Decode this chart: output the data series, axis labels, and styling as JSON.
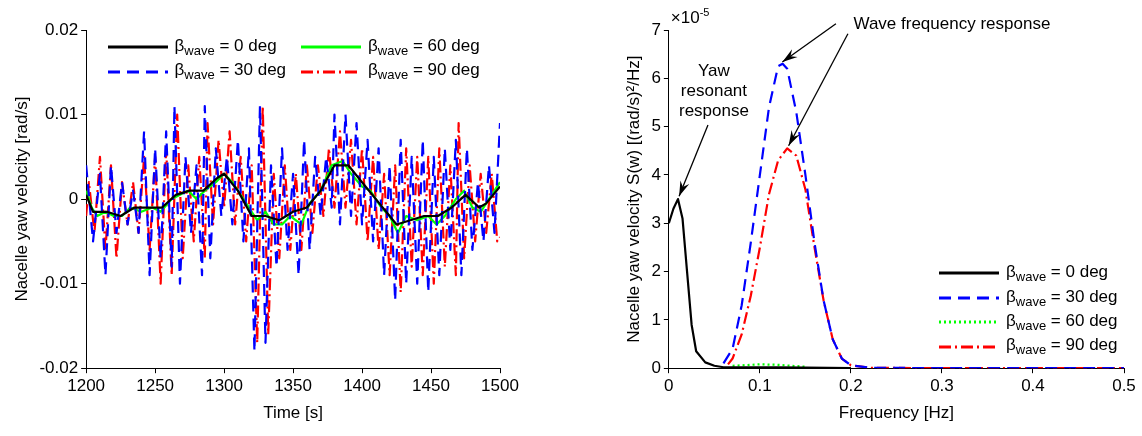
{
  "chart_data": [
    {
      "type": "line",
      "xlabel": "Time [s]",
      "ylabel": "Nacelle yaw velocity [rad/s]",
      "xlim": [
        1200,
        1500
      ],
      "ylim": [
        -0.02,
        0.02
      ],
      "xticks": [
        1200,
        1250,
        1300,
        1350,
        1400,
        1450,
        1500
      ],
      "yticks": [
        -0.02,
        -0.01,
        0,
        0.01,
        0.02
      ],
      "grid": false,
      "legend": "top",
      "series": [
        {
          "name": "β$_{wave}$ = 0 deg",
          "color": "#000000",
          "line_style": "solid",
          "x": [
            1200,
            1205,
            1215,
            1225,
            1235,
            1245,
            1255,
            1265,
            1275,
            1285,
            1295,
            1300,
            1310,
            1320,
            1330,
            1340,
            1350,
            1360,
            1370,
            1380,
            1390,
            1400,
            1410,
            1420,
            1425,
            1435,
            1445,
            1455,
            1465,
            1475,
            1485,
            1490,
            1500
          ],
          "values": [
            0.0005,
            -0.0015,
            -0.0015,
            -0.002,
            -0.001,
            -0.001,
            -0.001,
            0.0005,
            0.001,
            0.001,
            0.0025,
            0.003,
            0.001,
            -0.002,
            -0.002,
            -0.0025,
            -0.0015,
            -0.001,
            0.001,
            0.004,
            0.004,
            0.002,
            0,
            -0.002,
            -0.003,
            -0.0025,
            -0.002,
            -0.002,
            -0.001,
            0.0005,
            -0.001,
            -0.0005,
            0.0015
          ]
        },
        {
          "name": "β$_{wave}$ = 30 deg",
          "color": "#0000ff",
          "line_style": "dashed",
          "x": [
            1200,
            1205,
            1210,
            1214,
            1218,
            1222,
            1226,
            1230,
            1234,
            1238,
            1242,
            1246,
            1250,
            1254,
            1258,
            1262,
            1264,
            1268,
            1272,
            1276,
            1280,
            1284,
            1286,
            1290,
            1294,
            1298,
            1302,
            1306,
            1310,
            1314,
            1318,
            1322,
            1326,
            1330,
            1334,
            1338,
            1342,
            1346,
            1350,
            1354,
            1358,
            1362,
            1366,
            1370,
            1374,
            1378,
            1380,
            1384,
            1388,
            1392,
            1396,
            1400,
            1404,
            1408,
            1412,
            1416,
            1420,
            1424,
            1428,
            1432,
            1436,
            1440,
            1444,
            1448,
            1452,
            1456,
            1460,
            1464,
            1468,
            1472,
            1476,
            1480,
            1484,
            1488,
            1492,
            1496,
            1500
          ],
          "values": [
            0.004,
            -0.005,
            0.003,
            -0.009,
            0.004,
            -0.004,
            0.002,
            -0.003,
            0.001,
            -0.004,
            0.008,
            -0.009,
            0.006,
            -0.007,
            0.008,
            -0.008,
            0.011,
            -0.01,
            0.005,
            -0.004,
            0.004,
            -0.009,
            0.011,
            -0.007,
            0.006,
            -0.002,
            0.005,
            -0.003,
            0.007,
            -0.005,
            0.006,
            -0.018,
            0.011,
            -0.017,
            0.004,
            -0.008,
            0.006,
            -0.006,
            0.003,
            -0.009,
            0.007,
            -0.006,
            0.005,
            -0.002,
            0.005,
            -0.001,
            0.01,
            -0.003,
            0.01,
            -0.002,
            0.009,
            -0.003,
            0.007,
            -0.005,
            0.006,
            -0.009,
            0.004,
            -0.012,
            0.007,
            -0.01,
            0.005,
            -0.01,
            0.007,
            -0.011,
            0.005,
            -0.009,
            0.006,
            -0.006,
            0.007,
            -0.009,
            0.006,
            -0.006,
            0.002,
            -0.005,
            0.004,
            -0.004,
            0.009
          ]
        },
        {
          "name": "β$_{wave}$ = 60 deg",
          "color": "#00ff00",
          "line_style": "solid",
          "x": [
            1200,
            1204,
            1208,
            1214,
            1220,
            1226,
            1232,
            1240,
            1248,
            1254,
            1262,
            1268,
            1274,
            1280,
            1286,
            1294,
            1300,
            1306,
            1312,
            1318,
            1324,
            1330,
            1336,
            1342,
            1348,
            1356,
            1362,
            1370,
            1378,
            1386,
            1392,
            1400,
            1406,
            1414,
            1420,
            1426,
            1432,
            1440,
            1448,
            1454,
            1460,
            1468,
            1474,
            1480,
            1486,
            1492,
            1500
          ],
          "values": [
            0.001,
            -0.001,
            -0.002,
            -0.0015,
            -0.002,
            -0.002,
            -0.001,
            -0.0015,
            -0.001,
            -0.0015,
            0,
            0.0005,
            0.001,
            0,
            0.001,
            0.002,
            0.003,
            0.002,
            0.0005,
            -0.001,
            -0.0025,
            -0.0015,
            -0.003,
            -0.003,
            -0.002,
            -0.003,
            -0.0005,
            0.001,
            0.004,
            0.0045,
            0.003,
            0.0015,
            0.001,
            -0.001,
            -0.002,
            -0.004,
            -0.002,
            -0.0025,
            -0.002,
            -0.003,
            -0.002,
            0,
            0.001,
            -0.001,
            -0.0015,
            0,
            0.002
          ]
        },
        {
          "name": "β$_{wave}$ = 90 deg",
          "color": "#ff0000",
          "line_style": "dashdot",
          "x": [
            1200,
            1202,
            1206,
            1210,
            1214,
            1218,
            1222,
            1226,
            1230,
            1234,
            1238,
            1242,
            1246,
            1250,
            1254,
            1258,
            1262,
            1266,
            1270,
            1274,
            1278,
            1282,
            1286,
            1288,
            1292,
            1296,
            1300,
            1304,
            1308,
            1312,
            1316,
            1320,
            1324,
            1328,
            1332,
            1336,
            1340,
            1344,
            1348,
            1352,
            1356,
            1360,
            1364,
            1368,
            1372,
            1376,
            1380,
            1384,
            1388,
            1392,
            1396,
            1400,
            1404,
            1408,
            1412,
            1416,
            1420,
            1424,
            1428,
            1432,
            1436,
            1440,
            1444,
            1448,
            1452,
            1456,
            1460,
            1464,
            1468,
            1470,
            1474,
            1478,
            1482,
            1486,
            1490,
            1494,
            1498,
            1500
          ],
          "values": [
            -0.002,
            0.002,
            -0.004,
            0.005,
            -0.006,
            0.004,
            -0.007,
            0.002,
            -0.003,
            0.002,
            -0.004,
            0.005,
            -0.006,
            0.005,
            -0.01,
            0.006,
            -0.009,
            0.01,
            -0.007,
            0.004,
            -0.005,
            0.005,
            -0.007,
            0.009,
            -0.003,
            0.007,
            -0.001,
            0.008,
            -0.003,
            0.005,
            -0.005,
            0.004,
            -0.017,
            0.011,
            -0.016,
            0.003,
            -0.007,
            0.004,
            -0.006,
            0.003,
            -0.006,
            0.004,
            -0.004,
            0.004,
            -0.002,
            0.006,
            -0.001,
            0.008,
            -0.001,
            0.007,
            -0.003,
            0.006,
            -0.005,
            0.005,
            -0.006,
            0.003,
            -0.009,
            0.004,
            -0.011,
            0.006,
            -0.008,
            0.005,
            -0.009,
            0.005,
            -0.01,
            0.006,
            -0.008,
            0.004,
            -0.009,
            0.009,
            -0.007,
            0.004,
            -0.005,
            0.003,
            -0.004,
            0.003,
            -0.005,
            -0.0045
          ]
        }
      ]
    },
    {
      "type": "line",
      "xlabel": "Frequency [Hz]",
      "ylabel": "Nacelle yaw velocity S(w) [(rad/s)²/Hz]",
      "xlim": [
        0,
        0.5
      ],
      "ylim": [
        0,
        7
      ],
      "xticks": [
        0,
        0.1,
        0.2,
        0.3,
        0.4,
        0.5
      ],
      "yticks": [
        0,
        1,
        2,
        3,
        4,
        5,
        6,
        7
      ],
      "grid": false,
      "legend": "bottom right",
      "annotations": [
        "×10$^{-5}$",
        {
          "text": "Yaw resonant response",
          "x": 0.01,
          "y": 3.5
        },
        {
          "text": "Wave frequency response",
          "x": 0.122,
          "y": 6.3
        }
      ],
      "series": [
        {
          "name": "β$_{wave}$ = 0 deg",
          "color": "#000000",
          "line_style": "solid",
          "x": [
            0,
            0.005,
            0.01,
            0.015,
            0.02,
            0.025,
            0.03,
            0.04,
            0.05,
            0.06,
            0.08,
            0.1,
            0.12,
            0.15,
            0.2
          ],
          "values": [
            3.0,
            3.3,
            3.5,
            3.1,
            2.0,
            0.9,
            0.35,
            0.12,
            0.05,
            0.02,
            0.02,
            0.02,
            0.02,
            0.01,
            0
          ]
        },
        {
          "name": "β$_{wave}$ = 30 deg",
          "color": "#0000ff",
          "line_style": "dashed",
          "x": [
            0.06,
            0.07,
            0.08,
            0.09,
            0.1,
            0.11,
            0.12,
            0.125,
            0.13,
            0.14,
            0.15,
            0.16,
            0.17,
            0.18,
            0.19,
            0.2,
            0.22,
            0.3,
            0.5
          ],
          "values": [
            0.1,
            0.4,
            1.3,
            2.6,
            4.0,
            5.4,
            6.25,
            6.3,
            6.2,
            5.3,
            4.0,
            2.6,
            1.4,
            0.6,
            0.2,
            0.06,
            0.01,
            0,
            0
          ]
        },
        {
          "name": "β$_{wave}$ = 60 deg",
          "color": "#00ff00",
          "line_style": "dotted",
          "x": [
            0.07,
            0.1,
            0.12,
            0.15
          ],
          "values": [
            0.05,
            0.08,
            0.07,
            0.03
          ]
        },
        {
          "name": "β$_{wave}$ = 90 deg",
          "color": "#ff0000",
          "line_style": "dashdot",
          "x": [
            0.065,
            0.07,
            0.08,
            0.09,
            0.1,
            0.11,
            0.12,
            0.13,
            0.14,
            0.15,
            0.16,
            0.17,
            0.18,
            0.19,
            0.2,
            0.22,
            0.3,
            0.5
          ],
          "values": [
            0.08,
            0.2,
            0.7,
            1.5,
            2.5,
            3.6,
            4.3,
            4.55,
            4.4,
            3.7,
            2.5,
            1.4,
            0.6,
            0.2,
            0.06,
            0.01,
            0,
            0
          ]
        }
      ]
    }
  ]
}
